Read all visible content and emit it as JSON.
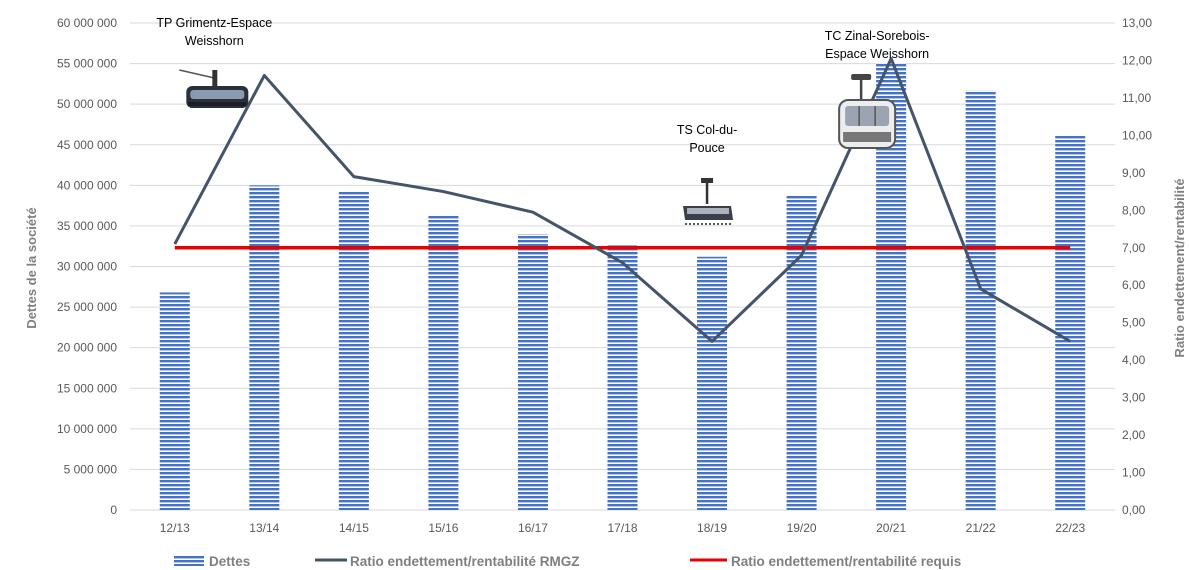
{
  "chart_data": {
    "type": "bar",
    "categories": [
      "12/13",
      "13/14",
      "14/15",
      "15/16",
      "16/17",
      "17/18",
      "18/19",
      "19/20",
      "20/21",
      "21/22",
      "22/23"
    ],
    "series": [
      {
        "name": "Dettes",
        "type": "bar",
        "axis": "left",
        "values": [
          26800000,
          40000000,
          39300000,
          36300000,
          34000000,
          32600000,
          31200000,
          38700000,
          55000000,
          51700000,
          46200000
        ]
      },
      {
        "name": "Ratio endettement/rentabilité RMGZ",
        "type": "line",
        "axis": "right",
        "values": [
          7.1,
          11.6,
          8.9,
          8.5,
          7.95,
          6.6,
          4.5,
          6.8,
          12.05,
          5.9,
          4.5
        ]
      },
      {
        "name": "Ratio endettement/rentabilité requis",
        "type": "line",
        "axis": "right",
        "values": [
          7.0,
          7.0,
          7.0,
          7.0,
          7.0,
          7.0,
          7.0,
          7.0,
          7.0,
          7.0,
          7.0
        ]
      }
    ],
    "ylabel": "Dettes de la société",
    "y2label": "Ratio endettement/rentabilité",
    "ylim": [
      0,
      60000000
    ],
    "y2lim": [
      0,
      13
    ],
    "yticks": [
      "0",
      "5 000 000",
      "10 000 000",
      "15 000 000",
      "20 000 000",
      "25 000 000",
      "30 000 000",
      "35 000 000",
      "40 000 000",
      "45 000 000",
      "50 000 000",
      "55 000 000",
      "60 000 000"
    ],
    "y2ticks": [
      "0,00",
      "1,00",
      "2,00",
      "3,00",
      "4,00",
      "5,00",
      "6,00",
      "7,00",
      "8,00",
      "9,00",
      "10,00",
      "11,00",
      "12,00",
      "13,00"
    ],
    "grid": true,
    "legend_position": "bottom",
    "annotations": [
      {
        "text": [
          "TP Grimentz-Espace",
          "Weisshorn"
        ],
        "category": "13/14",
        "icon": "gondola-cabin-icon"
      },
      {
        "text": [
          "TS Col-du-",
          "Pouce"
        ],
        "category": "18/19",
        "icon": "chairlift-icon"
      },
      {
        "text": [
          "TC Zinal-Sorebois-",
          "Espace Weisshorn"
        ],
        "category": "20/21",
        "icon": "gondola-car-icon"
      }
    ]
  },
  "colors": {
    "bar": "#4472c4",
    "bar_stripe": "#ffffff",
    "rmgz_line": "#44546a",
    "required_line": "#e60000",
    "grid": "#d9d9d9",
    "tick": "#595959",
    "axis_title": "#7f7f7f"
  }
}
